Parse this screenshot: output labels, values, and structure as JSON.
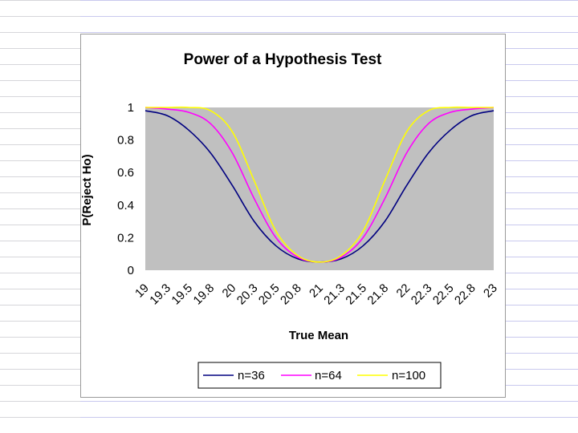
{
  "chart_data": {
    "type": "line",
    "title": "Power of a Hypothesis Test",
    "xlabel": "True Mean",
    "ylabel": "P(Reject Ho)",
    "xlim": [
      19,
      23
    ],
    "ylim": [
      0,
      1
    ],
    "y_ticks": [
      "0",
      "0.2",
      "0.4",
      "0.6",
      "0.8",
      "1"
    ],
    "x_ticks": [
      "19",
      "19.3",
      "19.5",
      "19.8",
      "20",
      "20.3",
      "20.5",
      "20.8",
      "21",
      "21.3",
      "21.5",
      "21.8",
      "22",
      "22.3",
      "22.5",
      "22.8",
      "23"
    ],
    "grid": false,
    "legend_position": "bottom",
    "plot_background": "#c0c0c0",
    "series": [
      {
        "name": "n=36",
        "color": "#000080",
        "x": [
          19,
          19.25,
          19.5,
          19.75,
          20,
          20.25,
          20.5,
          20.75,
          21,
          21.25,
          21.5,
          21.75,
          22,
          22.25,
          22.5,
          22.75,
          23
        ],
        "values": [
          0.98,
          0.95,
          0.86,
          0.72,
          0.52,
          0.3,
          0.15,
          0.07,
          0.05,
          0.07,
          0.15,
          0.3,
          0.52,
          0.72,
          0.86,
          0.95,
          0.98
        ]
      },
      {
        "name": "n=64",
        "color": "#ff00ff",
        "x": [
          19,
          19.25,
          19.5,
          19.75,
          20,
          20.25,
          20.5,
          20.75,
          21,
          21.25,
          21.5,
          21.75,
          22,
          22.25,
          22.5,
          22.75,
          23
        ],
        "values": [
          1.0,
          0.99,
          0.97,
          0.9,
          0.72,
          0.44,
          0.2,
          0.08,
          0.05,
          0.08,
          0.2,
          0.44,
          0.72,
          0.9,
          0.97,
          0.99,
          1.0
        ]
      },
      {
        "name": "n=100",
        "color": "#ffff00",
        "x": [
          19,
          19.25,
          19.5,
          19.75,
          20,
          20.25,
          20.5,
          20.75,
          21,
          21.25,
          21.5,
          21.75,
          22,
          22.25,
          22.5,
          22.75,
          23
        ],
        "values": [
          1.0,
          1.0,
          1.0,
          0.98,
          0.85,
          0.55,
          0.24,
          0.09,
          0.05,
          0.09,
          0.24,
          0.55,
          0.85,
          0.98,
          1.0,
          1.0,
          1.0
        ]
      }
    ]
  }
}
